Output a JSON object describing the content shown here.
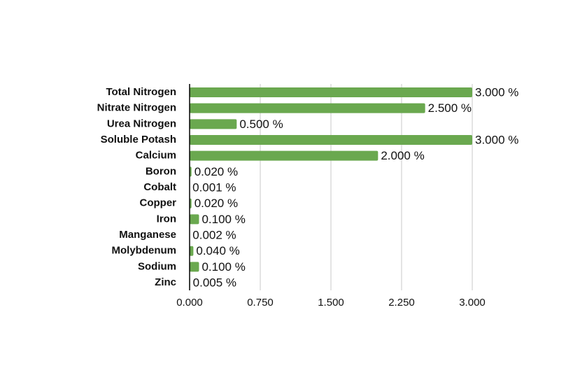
{
  "chart_data": {
    "type": "hbar",
    "categories": [
      "Total Nitrogen",
      "Nitrate Nitrogen",
      "Urea Nitrogen",
      "Soluble Potash",
      "Calcium",
      "Boron",
      "Cobalt",
      "Copper",
      "Iron",
      "Manganese",
      "Molybdenum",
      "Sodium",
      "Zinc"
    ],
    "values": [
      3.0,
      2.5,
      0.5,
      3.0,
      2.0,
      0.02,
      0.001,
      0.02,
      0.1,
      0.002,
      0.04,
      0.1,
      0.005
    ],
    "value_labels": [
      "3.000 %",
      "2.500 %",
      "0.500 %",
      "3.000 %",
      "2.000 %",
      "0.020 %",
      "0.001 %",
      "0.020 %",
      "0.100 %",
      "0.002 %",
      "0.040 %",
      "0.100 %",
      "0.005 %"
    ],
    "color": "#6aa84f",
    "xlim": [
      0,
      3
    ],
    "xticks": [
      {
        "value": 0,
        "label": "0.000"
      },
      {
        "value": 0.75,
        "label": "0.750"
      },
      {
        "value": 1.5,
        "label": "1.500"
      },
      {
        "value": 2.25,
        "label": "2.250"
      },
      {
        "value": 3,
        "label": "3.000"
      }
    ],
    "grid": true
  }
}
